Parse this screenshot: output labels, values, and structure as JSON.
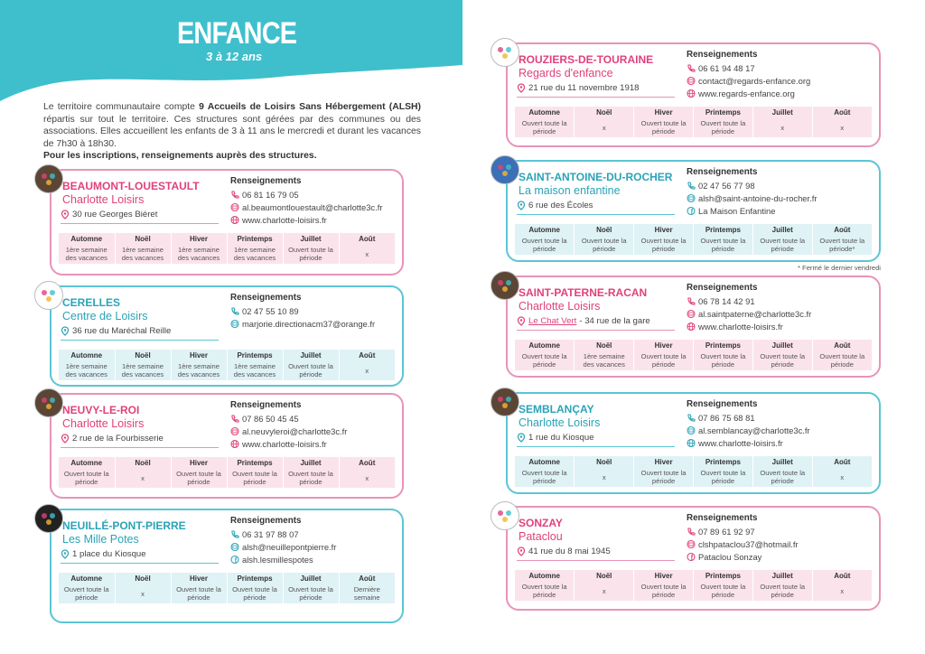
{
  "header": {
    "title": "ENFANCE",
    "subtitle": "3 à 12 ans"
  },
  "intro": {
    "text": [
      "Le territoire communautaire compte ",
      "9 Accueils de Loisirs Sans Hébergement (ALSH)",
      " répartis sur tout le territoire. Ces structures sont gérées par des communes ou des associations. Elles accueillent les enfants de 3 à 11 ans le mercredi et durant les vacances de 7h30 à 18h30."
    ],
    "bold": "Pour les inscriptions, renseignements auprès des structures."
  },
  "info_title": "Renseignements",
  "seasons": [
    "Automne",
    "Noël",
    "Hiver",
    "Printemps",
    "Juillet",
    "Août"
  ],
  "note": "* Fermé le dernier vendredi",
  "cards": [
    {
      "theme": "pink",
      "name": "BEAUMONT-LOUESTAULT",
      "org": "Charlotte Loisirs",
      "address": "30 rue Georges Biéret",
      "contacts": [
        {
          "kind": "phone",
          "text": "06 81 16 79 05"
        },
        {
          "kind": "mail",
          "text": "al.beaumontlouestault@charlotte3c.fr"
        },
        {
          "kind": "web",
          "text": "www.charlotte-loisirs.fr"
        }
      ],
      "periods": [
        "1ère semaine des vacances",
        "1ère semaine des vacances",
        "1ère semaine des vacances",
        "1ère semaine des vacances",
        "Ouvert toute la période",
        "x"
      ]
    },
    {
      "theme": "blue",
      "name": "CERELLES",
      "org": "Centre de Loisirs",
      "address": "36 rue du Maréchal Reille",
      "contacts": [
        {
          "kind": "phone",
          "text": "02 47 55 10 89"
        },
        {
          "kind": "mail",
          "text": "marjorie.directionacm37@orange.fr"
        }
      ],
      "periods": [
        "1ère semaine des vacances",
        "1ère semaine des vacances",
        "1ère semaine des vacances",
        "1ère semaine des vacances",
        "Ouvert toute la période",
        "x"
      ]
    },
    {
      "theme": "pink",
      "name": "NEUVY-LE-ROI",
      "org": "Charlotte Loisirs",
      "address": "2 rue de la Fourbisserie",
      "contacts": [
        {
          "kind": "phone",
          "text": "07 86 50 45 45"
        },
        {
          "kind": "mail",
          "text": "al.neuvyleroi@charlotte3c.fr"
        },
        {
          "kind": "web",
          "text": "www.charlotte-loisirs.fr"
        }
      ],
      "periods": [
        "Ouvert toute la période",
        "x",
        "Ouvert toute la période",
        "Ouvert toute la période",
        "Ouvert toute la période",
        "x"
      ]
    },
    {
      "theme": "blue",
      "name": "NEUILLÉ-PONT-PIERRE",
      "org": "Les Mille Potes",
      "address": "1 place du Kiosque",
      "contacts": [
        {
          "kind": "phone",
          "text": "06 31 97 88 07"
        },
        {
          "kind": "mail",
          "text": "alsh@neuillepontpierre.fr"
        },
        {
          "kind": "facebook",
          "text": "alsh.lesmillespotes"
        }
      ],
      "periods": [
        "Ouvert toute la période",
        "x",
        "Ouvert toute la période",
        "Ouvert toute la période",
        "Ouvert toute la période",
        "Dernière semaine"
      ]
    },
    {
      "theme": "pink",
      "name": "ROUZIERS-DE-TOURAINE",
      "org": "Regards d'enfance",
      "address": "21 rue du 11 novembre 1918",
      "contacts": [
        {
          "kind": "phone",
          "text": "06 61 94 48 17"
        },
        {
          "kind": "mail",
          "text": "contact@regards-enfance.org"
        },
        {
          "kind": "web",
          "text": "www.regards-enfance.org"
        }
      ],
      "periods": [
        "Ouvert toute la période",
        "x",
        "Ouvert toute la période",
        "Ouvert toute la période",
        "x",
        "x"
      ]
    },
    {
      "theme": "blue",
      "name": "SAINT-ANTOINE-DU-ROCHER",
      "org": "La maison enfantine",
      "address": "6 rue des Écoles",
      "contacts": [
        {
          "kind": "phone",
          "text": "02 47 56 77 98"
        },
        {
          "kind": "mail",
          "text": "alsh@saint-antoine-du-rocher.fr"
        },
        {
          "kind": "facebook",
          "text": "La Maison Enfantine"
        }
      ],
      "periods": [
        "Ouvert toute la période",
        "Ouvert toute la période",
        "Ouvert toute la période",
        "Ouvert toute la période",
        "Ouvert toute la période",
        "Ouvert toute la période*"
      ]
    },
    {
      "theme": "pink",
      "name": "SAINT-PATERNE-RACAN",
      "org": "Charlotte Loisirs",
      "address_link": "Le Chat Vert",
      "address": "- 34 rue de la gare",
      "contacts": [
        {
          "kind": "phone",
          "text": "06 78 14 42 91"
        },
        {
          "kind": "mail",
          "text": "al.saintpaterne@charlotte3c.fr"
        },
        {
          "kind": "web",
          "text": "www.charlotte-loisirs.fr"
        }
      ],
      "periods": [
        "Ouvert toute la période",
        "1ère semaine des vacances",
        "Ouvert toute la période",
        "Ouvert toute la période",
        "Ouvert toute la période",
        "Ouvert toute la période"
      ]
    },
    {
      "theme": "blue",
      "name": "SEMBLANÇAY",
      "org": "Charlotte Loisirs",
      "address": "1 rue du Kiosque",
      "contacts": [
        {
          "kind": "phone",
          "text": "07 86 75 68 81"
        },
        {
          "kind": "mail",
          "text": "al.semblancay@charlotte3c.fr"
        },
        {
          "kind": "web",
          "text": "www.charlotte-loisirs.fr"
        }
      ],
      "periods": [
        "Ouvert toute la période",
        "x",
        "Ouvert toute la période",
        "Ouvert toute la période",
        "Ouvert toute la période",
        "x"
      ]
    },
    {
      "theme": "pink",
      "name": "SONZAY",
      "org": "Pataclou",
      "address": "41 rue du 8 mai 1945",
      "contacts": [
        {
          "kind": "phone",
          "text": "07 89 61 92 97"
        },
        {
          "kind": "mail",
          "text": "clshpataclou37@hotmail.fr"
        },
        {
          "kind": "facebook",
          "text": "Pataclou Sonzay"
        }
      ],
      "periods": [
        "Ouvert toute la période",
        "x",
        "Ouvert toute la période",
        "Ouvert toute la période",
        "Ouvert toute la période",
        "x"
      ]
    }
  ]
}
